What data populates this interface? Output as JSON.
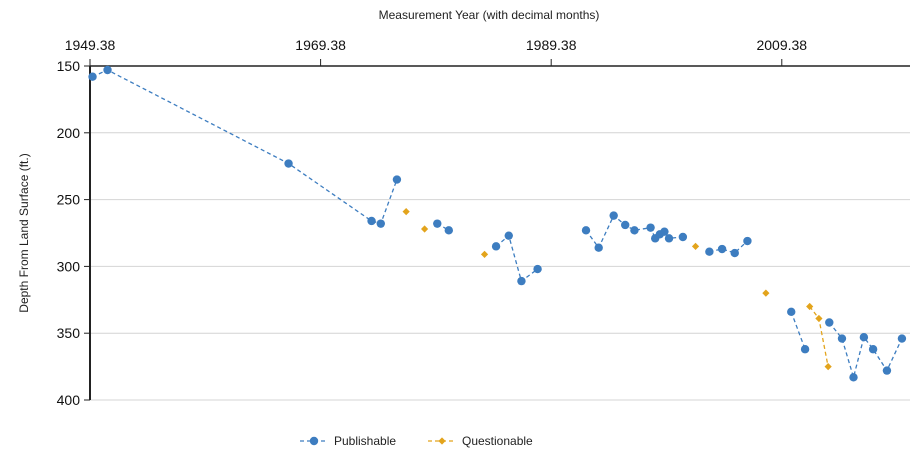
{
  "chart_data": {
    "type": "scatter",
    "title": "",
    "xlabel": "Measurement Year (with decimal months)",
    "ylabel": "Depth From Land Surface (ft.)",
    "x_axis_position": "top",
    "y_axis_inverted": true,
    "xlim": [
      1949.38,
      2020.5
    ],
    "ylim": [
      150,
      400
    ],
    "x_ticks": [
      1949.38,
      1969.38,
      1989.38,
      2009.38
    ],
    "x_tick_labels": [
      "1949.38",
      "1969.38",
      "1989.38",
      "2009.38"
    ],
    "y_ticks": [
      150,
      200,
      250,
      300,
      350,
      400
    ],
    "y_tick_labels": [
      "150",
      "200",
      "250",
      "300",
      "350",
      "400"
    ],
    "grid": "horizontal",
    "legend_position": "bottom-center",
    "series": [
      {
        "name": "Publishable",
        "color": "#3d7dc0",
        "marker": "circle",
        "line": "dashed",
        "segments": [
          [
            [
              1949.6,
              158
            ],
            [
              1950.9,
              153
            ],
            [
              1966.6,
              223
            ],
            [
              1973.8,
              266
            ],
            [
              1974.6,
              268
            ],
            [
              1976.0,
              235
            ]
          ],
          [
            [
              1979.5,
              268
            ],
            [
              1980.5,
              273
            ]
          ],
          [
            [
              1984.6,
              285
            ],
            [
              1985.7,
              277
            ],
            [
              1986.8,
              311
            ],
            [
              1988.2,
              302
            ]
          ],
          [
            [
              1992.4,
              273
            ],
            [
              1993.5,
              286
            ],
            [
              1994.8,
              262
            ],
            [
              1995.8,
              269
            ],
            [
              1996.6,
              273
            ],
            [
              1998.0,
              271
            ],
            [
              1998.4,
              279
            ],
            [
              1998.8,
              276
            ],
            [
              1999.2,
              274
            ],
            [
              1999.6,
              279
            ],
            [
              2000.8,
              278
            ]
          ],
          [
            [
              2003.1,
              289
            ],
            [
              2004.2,
              287
            ],
            [
              2005.3,
              290
            ],
            [
              2006.4,
              281
            ]
          ],
          [
            [
              2010.2,
              334
            ],
            [
              2011.4,
              362
            ]
          ],
          [
            [
              2013.5,
              342
            ],
            [
              2014.6,
              354
            ],
            [
              2015.6,
              383
            ],
            [
              2016.5,
              353
            ],
            [
              2017.3,
              362
            ],
            [
              2018.5,
              378
            ],
            [
              2019.8,
              354
            ]
          ]
        ]
      },
      {
        "name": "Questionable",
        "color": "#e3a41c",
        "marker": "diamond",
        "line": "dashed",
        "segments": [
          [
            [
              1976.8,
              259
            ]
          ],
          [
            [
              1978.4,
              272
            ]
          ],
          [
            [
              1983.6,
              291
            ]
          ],
          [
            [
              2001.9,
              285
            ]
          ],
          [
            [
              2008.0,
              320
            ]
          ],
          [
            [
              2011.8,
              330
            ],
            [
              2012.6,
              339
            ],
            [
              2013.4,
              375
            ]
          ]
        ]
      }
    ]
  }
}
